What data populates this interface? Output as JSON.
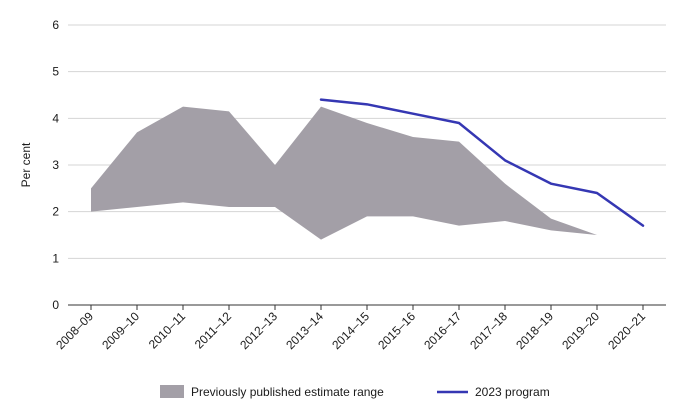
{
  "chart_data": {
    "type": "area",
    "title": "",
    "xlabel": "",
    "ylabel": "Per cent",
    "ylim": [
      0,
      6
    ],
    "yticks": [
      0,
      1,
      2,
      3,
      4,
      5,
      6
    ],
    "grid": true,
    "legend_position": "bottom",
    "categories": [
      "2008–09",
      "2009–10",
      "2010–11",
      "2011–12",
      "2012–13",
      "2013–14",
      "2014–15",
      "2015–16",
      "2016–17",
      "2017–18",
      "2018–19",
      "2019–20",
      "2020–21"
    ],
    "series": [
      {
        "name": "Previously published estimate range",
        "kind": "range",
        "color": "#a39fa7",
        "upper": [
          2.5,
          3.7,
          4.25,
          4.15,
          3.0,
          4.25,
          3.9,
          3.6,
          3.5,
          2.6,
          1.85,
          1.5,
          null
        ],
        "lower": [
          2.0,
          2.1,
          2.2,
          2.1,
          2.1,
          1.4,
          1.9,
          1.9,
          1.7,
          1.8,
          1.6,
          1.5,
          null
        ]
      },
      {
        "name": "2023 program",
        "kind": "line",
        "color": "#3537b3",
        "values": [
          null,
          null,
          null,
          null,
          null,
          4.4,
          4.3,
          4.1,
          3.9,
          3.1,
          2.6,
          2.4,
          1.7
        ]
      }
    ]
  }
}
